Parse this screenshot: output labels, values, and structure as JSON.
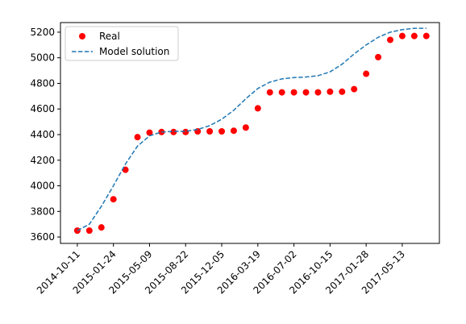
{
  "chart_data": {
    "type": "scatter-line",
    "x": [
      "2014-10-11",
      "2014-11-15",
      "2014-12-20",
      "2015-01-24",
      "2015-02-28",
      "2015-04-04",
      "2015-05-09",
      "2015-06-13",
      "2015-07-18",
      "2015-08-22",
      "2015-09-26",
      "2015-10-31",
      "2015-12-05",
      "2016-01-09",
      "2016-02-13",
      "2016-03-19",
      "2016-04-23",
      "2016-05-28",
      "2016-07-02",
      "2016-08-06",
      "2016-09-10",
      "2016-10-15",
      "2016-11-19",
      "2016-12-24",
      "2017-01-28",
      "2017-03-04",
      "2017-04-08",
      "2017-05-13",
      "2017-06-17",
      "2017-07-22"
    ],
    "series": [
      {
        "name": "Real",
        "color": "#ff0000",
        "style": "markers",
        "values": [
          3650,
          3650,
          3675,
          3895,
          4125,
          4380,
          4415,
          4420,
          4420,
          4420,
          4425,
          4425,
          4425,
          4430,
          4455,
          4605,
          4730,
          4730,
          4730,
          4730,
          4730,
          4735,
          4735,
          4755,
          4875,
          5005,
          5140,
          5170,
          5170,
          5170
        ]
      },
      {
        "name": "Model solution",
        "color": "#1f77b4",
        "style": "dashed",
        "values": [
          3650,
          3700,
          3840,
          4000,
          4170,
          4310,
          4390,
          4420,
          4425,
          4425,
          4440,
          4470,
          4520,
          4590,
          4680,
          4760,
          4810,
          4835,
          4845,
          4850,
          4860,
          4890,
          4950,
          5030,
          5100,
          5160,
          5200,
          5220,
          5230,
          5230
        ]
      }
    ],
    "xlim": [
      "2014-08-23",
      "2017-08-29"
    ],
    "xticks": [
      "2014-10-11",
      "2015-01-24",
      "2015-05-09",
      "2015-08-22",
      "2015-12-05",
      "2016-03-19",
      "2016-07-02",
      "2016-10-15",
      "2017-01-28",
      "2017-05-13"
    ],
    "ylim": [
      3550,
      5275
    ],
    "yticks": [
      3600,
      3800,
      4000,
      4200,
      4400,
      4600,
      4800,
      5000,
      5200
    ],
    "legend": "upper left"
  }
}
